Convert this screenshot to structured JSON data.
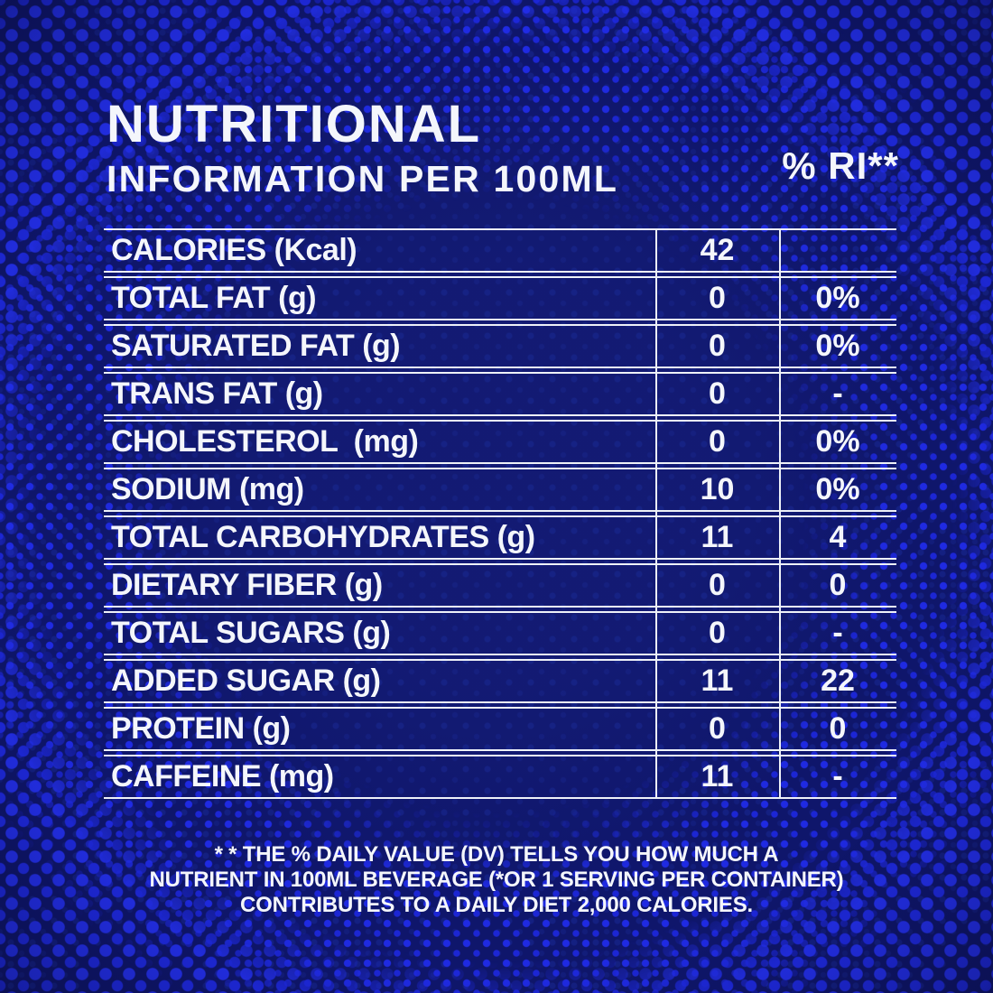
{
  "page": {
    "background_color": "#0f166b",
    "accent_dot_color": "#1f2ae2",
    "text_color": "#f4f6fb",
    "line_color": "#eef1f8"
  },
  "header": {
    "title": "NUTRITIONAL",
    "subtitle": "INFORMATION PER 100ML",
    "percent_ri_label": "% RI**"
  },
  "table": {
    "rows": [
      {
        "label": "CALORIES (Kcal)",
        "value": "42",
        "percent": ""
      },
      {
        "label": "TOTAL FAT (g)",
        "value": "0",
        "percent": "0%"
      },
      {
        "label": "SATURATED FAT (g)",
        "value": "0",
        "percent": "0%"
      },
      {
        "label": "TRANS FAT (g)",
        "value": "0",
        "percent": "-"
      },
      {
        "label": "CHOLESTEROL  (mg)",
        "value": "0",
        "percent": "0%"
      },
      {
        "label": "SODIUM (mg)",
        "value": "10",
        "percent": "0%"
      },
      {
        "label": "TOTAL CARBOHYDRATES (g)",
        "value": "11",
        "percent": "4"
      },
      {
        "label": "DIETARY FIBER (g)",
        "value": "0",
        "percent": "0"
      },
      {
        "label": "TOTAL SUGARS (g)",
        "value": "0",
        "percent": "-"
      },
      {
        "label": "ADDED SUGAR (g)",
        "value": "11",
        "percent": "22"
      },
      {
        "label": "PROTEIN (g)",
        "value": "0",
        "percent": "0"
      },
      {
        "label": "CAFFEINE (mg)",
        "value": "11",
        "percent": "-"
      }
    ]
  },
  "footer": {
    "lines": [
      "* * THE % DAILY VALUE (DV) TELLS YOU HOW MUCH A",
      "NUTRIENT IN 100ML BEVERAGE (*OR 1 SERVING PER CONTAINER)",
      "CONTRIBUTES TO A DAILY DIET 2,000 CALORIES."
    ]
  }
}
